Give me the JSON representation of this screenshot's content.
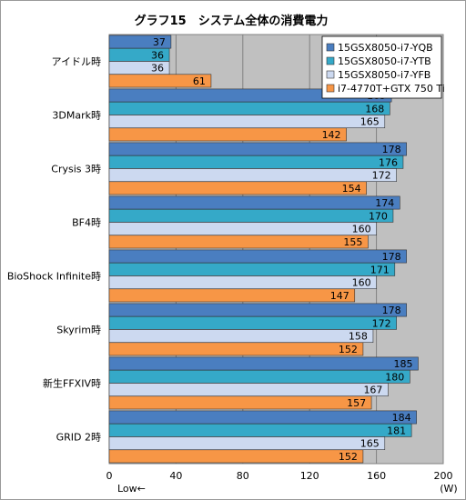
{
  "chart_data": {
    "type": "bar",
    "orientation": "horizontal",
    "title": "グラフ15　システム全体の消費電力",
    "categories": [
      "アイドル時",
      "3DMark時",
      "Crysis 3時",
      "BF4時",
      "BioShock Infinite時",
      "Skyrim時",
      "新生FFXIV時",
      "GRID 2時"
    ],
    "series": [
      {
        "name": "15GSX8050-i7-YQB",
        "color": "#4a7ec0",
        "values": [
          37,
          169,
          178,
          174,
          178,
          178,
          185,
          184
        ]
      },
      {
        "name": "15GSX8050-i7-YTB",
        "color": "#35a9c8",
        "values": [
          36,
          168,
          176,
          170,
          171,
          172,
          180,
          181
        ]
      },
      {
        "name": "15GSX8050-i7-YFB",
        "color": "#ccd9f0",
        "values": [
          36,
          165,
          172,
          160,
          160,
          158,
          167,
          165
        ]
      },
      {
        "name": "i7-4770T+GTX 750 Ti",
        "color": "#f79646",
        "values": [
          61,
          142,
          154,
          155,
          147,
          152,
          157,
          152
        ]
      }
    ],
    "x_ticks": [
      0,
      40,
      80,
      120,
      160,
      200
    ],
    "xlim": [
      0,
      200
    ],
    "xlabel_left": "Low←",
    "xlabel_unit": "(W)",
    "legend_position": "top-right",
    "grid": true,
    "data_labels": true
  }
}
